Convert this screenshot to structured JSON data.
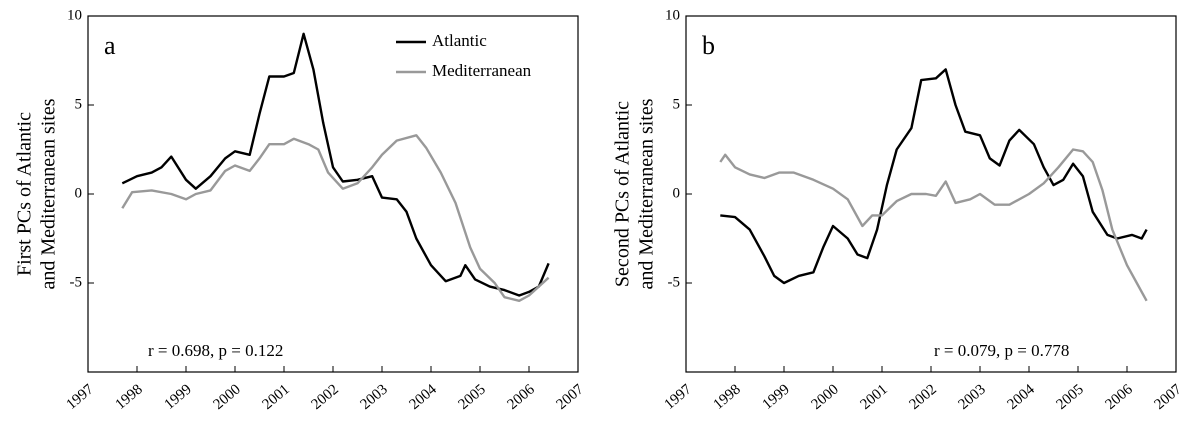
{
  "chart_data": [
    {
      "type": "line",
      "annotation": "a",
      "stats": "r = 0.698, p = 0.122",
      "ylabel": [
        "First PCs of Atlantic",
        "and Mediterranean sites"
      ],
      "xlim": [
        1997,
        2007
      ],
      "xticks": [
        1997,
        1998,
        1999,
        2000,
        2001,
        2002,
        2003,
        2004,
        2005,
        2006,
        2007
      ],
      "ylim": [
        -10,
        10
      ],
      "yticks": [
        -5,
        0,
        5,
        10
      ],
      "legend": "upper right",
      "series": [
        {
          "name": "Atlantic",
          "color": "#000000",
          "x": [
            1997.7,
            1998.0,
            1998.3,
            1998.5,
            1998.7,
            1999.0,
            1999.2,
            1999.5,
            1999.8,
            2000.0,
            2000.3,
            2000.5,
            2000.7,
            2001.0,
            2001.2,
            2001.4,
            2001.6,
            2001.8,
            2002.0,
            2002.2,
            2002.5,
            2002.8,
            2003.0,
            2003.3,
            2003.5,
            2003.7,
            2004.0,
            2004.3,
            2004.6,
            2004.7,
            2004.9,
            2005.2,
            2005.5,
            2005.8,
            2006.0,
            2006.2,
            2006.4
          ],
          "values": [
            0.6,
            1.0,
            1.2,
            1.5,
            2.1,
            0.8,
            0.3,
            1.0,
            2.0,
            2.4,
            2.2,
            4.5,
            6.6,
            6.6,
            6.8,
            9.0,
            7.0,
            4.0,
            1.5,
            0.7,
            0.8,
            1.0,
            -0.2,
            -0.3,
            -1.0,
            -2.5,
            -4.0,
            -4.9,
            -4.6,
            -4.0,
            -4.8,
            -5.2,
            -5.4,
            -5.7,
            -5.5,
            -5.2,
            -3.9
          ]
        },
        {
          "name": "Mediterranean",
          "color": "#999999",
          "x": [
            1997.7,
            1997.9,
            1998.3,
            1998.7,
            1999.0,
            1999.2,
            1999.5,
            1999.8,
            2000.0,
            2000.3,
            2000.5,
            2000.7,
            2001.0,
            2001.2,
            2001.5,
            2001.7,
            2001.9,
            2002.2,
            2002.5,
            2002.8,
            2003.0,
            2003.3,
            2003.7,
            2003.9,
            2004.2,
            2004.5,
            2004.8,
            2005.0,
            2005.3,
            2005.5,
            2005.8,
            2006.0,
            2006.4
          ],
          "values": [
            -0.8,
            0.1,
            0.2,
            0.0,
            -0.3,
            0.0,
            0.2,
            1.3,
            1.6,
            1.3,
            2.0,
            2.8,
            2.8,
            3.1,
            2.8,
            2.5,
            1.2,
            0.3,
            0.6,
            1.5,
            2.2,
            3.0,
            3.3,
            2.6,
            1.2,
            -0.5,
            -3.0,
            -4.2,
            -5.0,
            -5.8,
            -6.0,
            -5.7,
            -4.7
          ]
        }
      ]
    },
    {
      "type": "line",
      "annotation": "b",
      "stats": "r = 0.079, p = 0.778",
      "ylabel": [
        "Second PCs of Atlantic",
        "and Mediterranean sites"
      ],
      "xlim": [
        1997,
        2007
      ],
      "xticks": [
        1997,
        1998,
        1999,
        2000,
        2001,
        2002,
        2003,
        2004,
        2005,
        2006,
        2007
      ],
      "ylim": [
        -10,
        10
      ],
      "yticks": [
        -5,
        0,
        5,
        10
      ],
      "series": [
        {
          "color": "#000000",
          "x": [
            1997.7,
            1998.0,
            1998.3,
            1998.6,
            1998.8,
            1999.0,
            1999.3,
            1999.6,
            1999.8,
            2000.0,
            2000.3,
            2000.5,
            2000.7,
            2000.9,
            2001.1,
            2001.3,
            2001.6,
            2001.8,
            2002.1,
            2002.3,
            2002.5,
            2002.7,
            2003.0,
            2003.2,
            2003.4,
            2003.6,
            2003.8,
            2004.1,
            2004.3,
            2004.5,
            2004.7,
            2004.9,
            2005.1,
            2005.3,
            2005.6,
            2005.8,
            2006.1,
            2006.3,
            2006.4
          ],
          "values": [
            -1.2,
            -1.3,
            -2.0,
            -3.5,
            -4.6,
            -5.0,
            -4.6,
            -4.4,
            -3.0,
            -1.8,
            -2.5,
            -3.4,
            -3.6,
            -2.0,
            0.5,
            2.5,
            3.7,
            6.4,
            6.5,
            7.0,
            5.0,
            3.5,
            3.3,
            2.0,
            1.6,
            3.0,
            3.6,
            2.8,
            1.5,
            0.5,
            0.8,
            1.7,
            1.0,
            -1.0,
            -2.3,
            -2.5,
            -2.3,
            -2.5,
            -2.0
          ]
        },
        {
          "color": "#999999",
          "x": [
            1997.7,
            1997.8,
            1998.0,
            1998.3,
            1998.6,
            1998.9,
            1999.2,
            1999.6,
            2000.0,
            2000.3,
            2000.6,
            2000.8,
            2001.0,
            2001.3,
            2001.6,
            2001.9,
            2002.1,
            2002.3,
            2002.5,
            2002.8,
            2003.0,
            2003.3,
            2003.6,
            2004.0,
            2004.3,
            2004.6,
            2004.9,
            2005.1,
            2005.3,
            2005.5,
            2005.7,
            2006.0,
            2006.2,
            2006.4
          ],
          "values": [
            1.8,
            2.2,
            1.5,
            1.1,
            0.9,
            1.2,
            1.2,
            0.8,
            0.3,
            -0.3,
            -1.8,
            -1.2,
            -1.2,
            -0.4,
            0.0,
            0.0,
            -0.1,
            0.7,
            -0.5,
            -0.3,
            0.0,
            -0.6,
            -0.6,
            0.0,
            0.6,
            1.5,
            2.5,
            2.4,
            1.8,
            0.2,
            -2.0,
            -4.0,
            -5.0,
            -6.0
          ]
        }
      ]
    }
  ]
}
